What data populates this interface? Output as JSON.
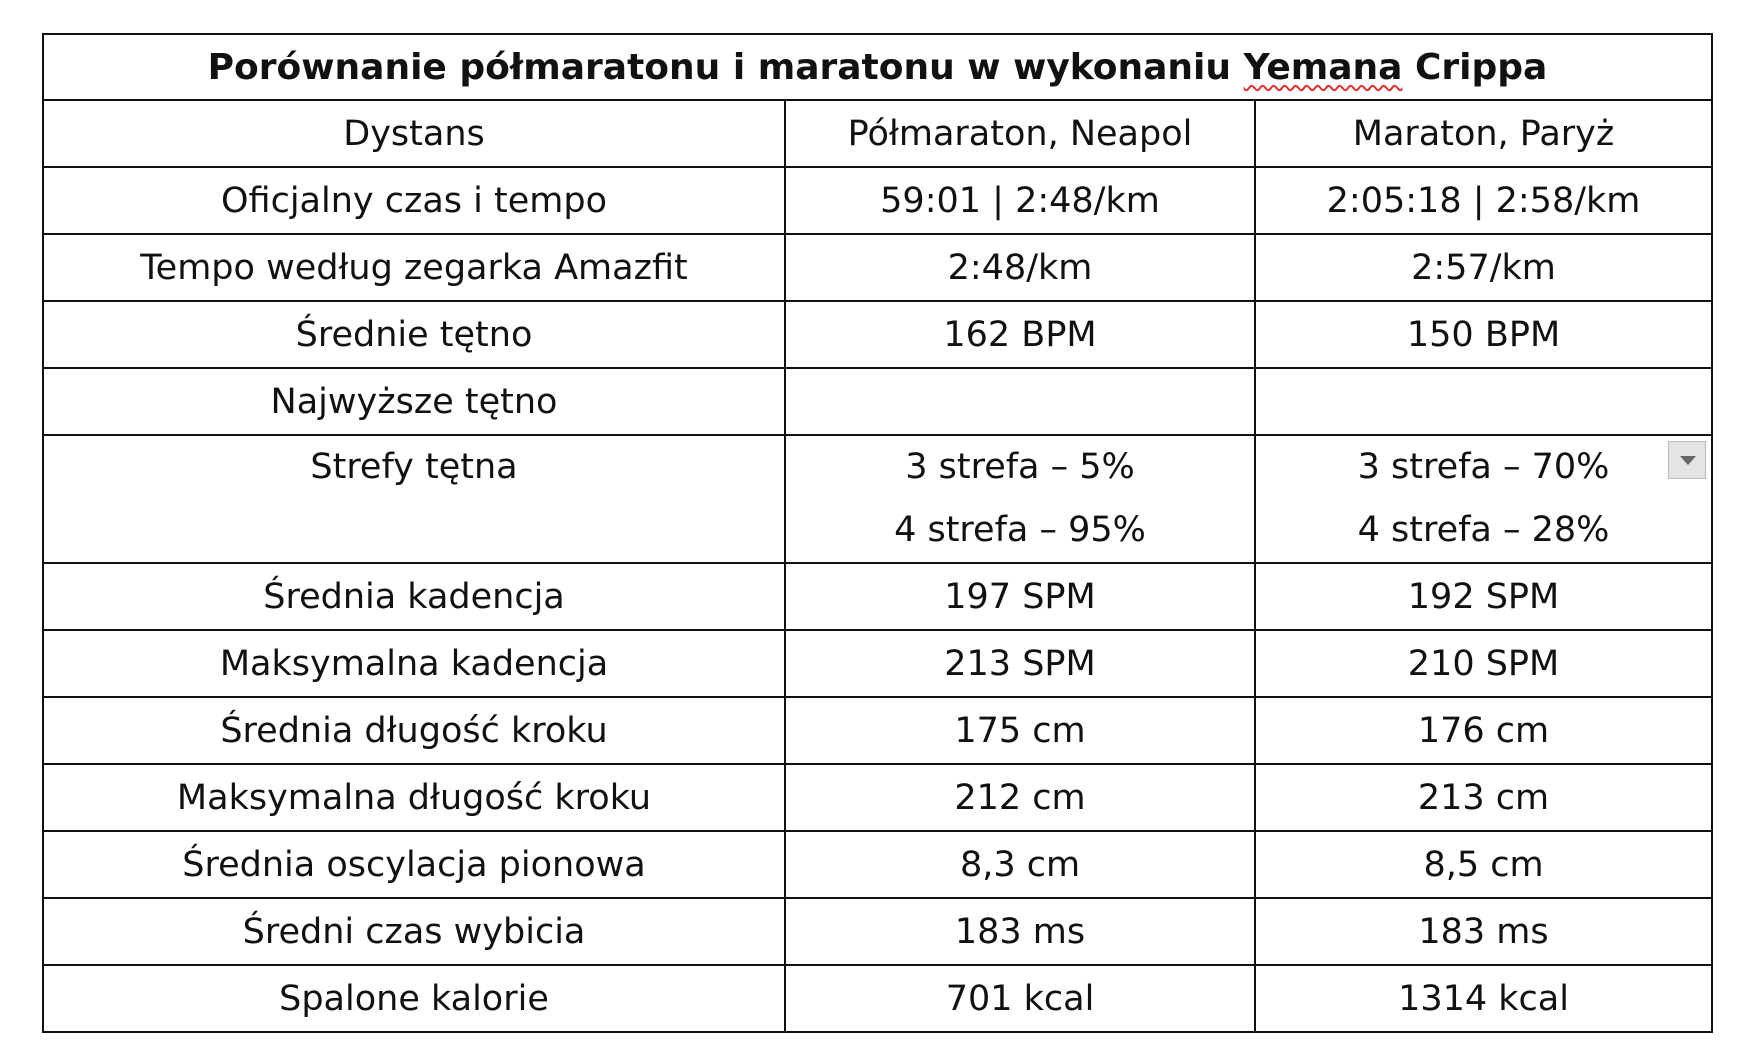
{
  "table": {
    "title": "Porównanie półmaratonu i maratonu w wykonaniu Yemana Crippa",
    "header": [
      "Dystans",
      "Półmaraton, Neapol",
      "Maraton, Paryż"
    ],
    "rows": [
      [
        "Oficjalny czas i tempo",
        "59:01 | 2:48/km",
        "2:05:18 | 2:58/km"
      ],
      [
        "Tempo według zegarka Amazfit",
        "2:48/km",
        "2:57/km"
      ],
      [
        "Średnie tętno",
        "162 BPM",
        "150 BPM"
      ],
      [
        "Najwyższe tętno",
        null,
        null
      ],
      [
        "Strefy tętna",
        [
          "3 strefa – 5%",
          "4 strefa – 95%"
        ],
        [
          "3 strefa – 70%",
          "4 strefa – 28%"
        ]
      ],
      [
        "Średnia kadencja",
        "197 SPM",
        "192 SPM"
      ],
      [
        "Maksymalna kadencja",
        "213 SPM",
        "210 SPM"
      ],
      [
        "Średnia długość kroku",
        "175 cm",
        "176 cm"
      ],
      [
        "Maksymalna długość kroku",
        "212 cm",
        "213 cm"
      ],
      [
        "Średnia oscylacja pionowa",
        "8,3 cm",
        "8,5 cm"
      ],
      [
        "Średni czas wybicia",
        "183 ms",
        "183 ms"
      ],
      [
        "Spalone kalorie",
        "701 kcal",
        "1314 kcal"
      ]
    ]
  }
}
